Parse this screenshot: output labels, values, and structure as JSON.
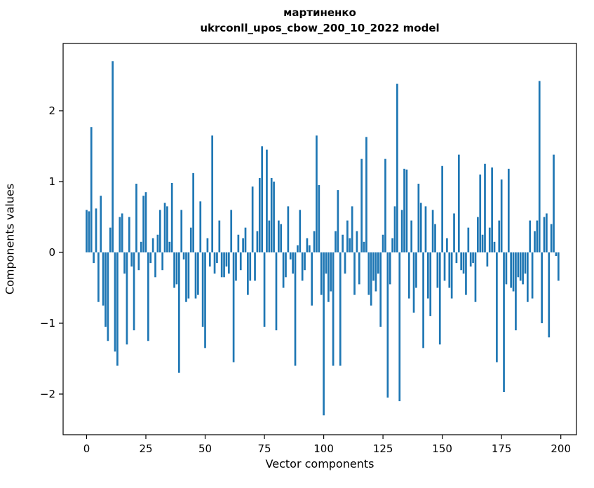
{
  "chart_data": {
    "type": "bar",
    "title": "мартиненко",
    "subtitle": "ukrconll_upos_cbow_200_10_2022 model",
    "xlabel": "Vector components",
    "ylabel": "Components values",
    "bar_color": "#1f77b4",
    "axis_color": "#000000",
    "grid": false,
    "legend": "none",
    "xticks": [
      0,
      25,
      50,
      75,
      100,
      125,
      150,
      175,
      200
    ],
    "yticks": [
      -2,
      -1,
      0,
      1,
      2
    ],
    "xlim": [
      -9.9,
      206.6
    ],
    "ylim": [
      -2.574,
      2.95
    ],
    "categories_note": "x = component index 0..199",
    "values": [
      0.6,
      0.58,
      1.77,
      -0.15,
      0.62,
      -0.7,
      0.8,
      -0.75,
      -1.05,
      -1.25,
      0.35,
      2.7,
      -1.4,
      -1.6,
      0.5,
      0.55,
      -0.3,
      -1.3,
      0.5,
      -0.2,
      -1.1,
      0.97,
      -0.25,
      0.15,
      0.8,
      0.85,
      -1.25,
      -0.15,
      0.2,
      -0.35,
      0.25,
      0.6,
      -0.25,
      0.7,
      0.65,
      0.15,
      0.98,
      -0.5,
      -0.45,
      -1.7,
      0.6,
      -0.1,
      -0.7,
      -0.65,
      0.35,
      1.12,
      -0.65,
      -0.6,
      0.72,
      -1.05,
      -1.35,
      0.2,
      -0.2,
      1.65,
      -0.3,
      -0.15,
      0.45,
      -0.35,
      -0.35,
      -0.2,
      -0.3,
      0.6,
      -1.55,
      -0.4,
      0.25,
      -0.25,
      0.2,
      0.35,
      -0.6,
      -0.4,
      0.93,
      -0.4,
      0.3,
      1.05,
      1.5,
      -1.05,
      1.45,
      0.45,
      1.05,
      1.0,
      -1.1,
      0.45,
      0.4,
      -0.5,
      -0.35,
      0.65,
      -0.1,
      -0.3,
      -1.6,
      0.1,
      0.6,
      -0.4,
      -0.25,
      0.2,
      0.1,
      -0.75,
      0.3,
      1.65,
      0.95,
      -0.6,
      -2.3,
      -0.3,
      -0.7,
      -0.55,
      -1.6,
      0.3,
      0.88,
      -1.6,
      0.25,
      -0.3,
      0.45,
      0.2,
      0.65,
      -0.6,
      0.3,
      -0.45,
      1.32,
      0.15,
      1.63,
      -0.6,
      -0.75,
      -0.4,
      -0.55,
      -0.3,
      -1.05,
      0.25,
      1.32,
      -2.05,
      -0.45,
      0.2,
      0.65,
      2.38,
      -2.1,
      0.6,
      1.18,
      1.17,
      -0.65,
      0.45,
      -0.85,
      -0.5,
      0.97,
      0.7,
      -1.35,
      0.65,
      -0.65,
      -0.9,
      0.6,
      0.4,
      -0.5,
      -1.3,
      1.22,
      -0.4,
      0.2,
      -0.5,
      -0.65,
      0.55,
      -0.15,
      1.38,
      -0.25,
      -0.3,
      -0.6,
      0.35,
      -0.2,
      -0.15,
      -0.7,
      0.5,
      1.1,
      0.25,
      1.25,
      -0.2,
      0.35,
      1.2,
      0.15,
      -1.55,
      0.45,
      1.03,
      -1.97,
      -0.45,
      1.18,
      -0.5,
      -0.55,
      -1.1,
      -0.35,
      -0.4,
      -0.45,
      -0.3,
      -0.7,
      0.45,
      -0.65,
      0.3,
      0.45,
      2.42,
      -1.0,
      0.5,
      0.55,
      -1.2,
      0.4,
      1.38,
      -0.05,
      -0.4
    ]
  }
}
